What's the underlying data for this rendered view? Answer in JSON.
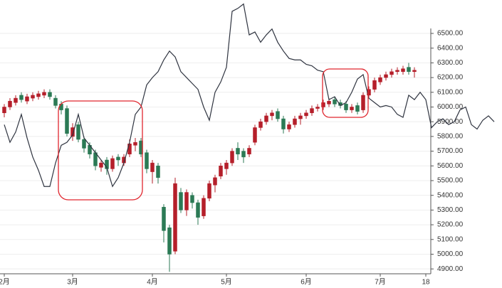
{
  "chart_data": {
    "type": "candlestick",
    "categories": [
      "2月",
      null,
      null,
      null,
      null,
      null,
      null,
      null,
      null,
      null,
      null,
      null,
      "3月",
      null,
      null,
      null,
      null,
      null,
      null,
      null,
      null,
      null,
      null,
      null,
      null,
      null,
      "4月",
      null,
      null,
      null,
      null,
      null,
      null,
      null,
      null,
      null,
      null,
      null,
      null,
      "5月",
      null,
      null,
      null,
      null,
      null,
      null,
      null,
      null,
      null,
      null,
      null,
      null,
      null,
      "6月",
      null,
      null,
      null,
      null,
      null,
      null,
      null,
      null,
      null,
      null,
      null,
      null,
      "7月",
      null,
      null,
      null,
      null,
      null,
      null,
      null,
      "18",
      null,
      null,
      null,
      null,
      null,
      null,
      null,
      null,
      null,
      null,
      null,
      null
    ],
    "open": [
      5960,
      6000,
      6030,
      6080,
      6040,
      6060,
      6070,
      6080,
      6100,
      6060,
      6020,
      5990,
      5800,
      5880,
      5780,
      5740,
      5690,
      5590,
      5640,
      5580,
      5660,
      5620,
      5680,
      5740,
      5770,
      5690,
      5560,
      5600,
      5320,
      5180,
      5020,
      5420,
      5300,
      5400,
      5350,
      5260,
      5380,
      5470,
      5530,
      5580,
      5620,
      5720,
      5700,
      5680,
      5760,
      5860,
      5900,
      5940,
      5970,
      5920,
      5850,
      5880,
      5920,
      5940,
      5960,
      5990,
      6000,
      6020,
      6050,
      6030,
      6020,
      5980,
      6010,
      5980,
      6080,
      6120,
      6170,
      6200,
      6220,
      6240,
      6240,
      6270,
      6240,
      null,
      null,
      null,
      null,
      null,
      null,
      null,
      null,
      null,
      null,
      null,
      null,
      null,
      null
    ],
    "high": [
      6020,
      6060,
      6080,
      6100,
      6090,
      6100,
      6110,
      6120,
      6120,
      6080,
      6040,
      6010,
      5890,
      5900,
      5800,
      5760,
      5710,
      5640,
      5660,
      5670,
      5680,
      5680,
      5780,
      5790,
      5790,
      5710,
      5640,
      5620,
      5340,
      5200,
      5520,
      5450,
      5440,
      5420,
      5370,
      5400,
      5500,
      5540,
      5620,
      5640,
      5720,
      5760,
      5720,
      5740,
      5880,
      5920,
      5960,
      5980,
      5990,
      5940,
      5900,
      5940,
      5960,
      5980,
      6010,
      6020,
      6050,
      6060,
      6070,
      6050,
      6040,
      6020,
      6030,
      6100,
      6140,
      6200,
      6220,
      6240,
      6260,
      6270,
      6280,
      6300,
      6270,
      null,
      null,
      null,
      null,
      null,
      null,
      null,
      null,
      null,
      null,
      null,
      null,
      null,
      null
    ],
    "low": [
      5930,
      5980,
      6010,
      6030,
      6020,
      6040,
      6050,
      6060,
      6050,
      5990,
      5950,
      5800,
      5770,
      5760,
      5690,
      5650,
      5570,
      5560,
      5540,
      5560,
      5600,
      5600,
      5660,
      5700,
      5660,
      5550,
      5480,
      5480,
      5080,
      4880,
      5000,
      5280,
      5260,
      5310,
      5200,
      5240,
      5360,
      5420,
      5510,
      5540,
      5600,
      5640,
      5620,
      5660,
      5740,
      5840,
      5880,
      5910,
      5900,
      5820,
      5830,
      5860,
      5880,
      5920,
      5940,
      5970,
      5980,
      6000,
      6000,
      5990,
      5960,
      5960,
      5950,
      5960,
      6060,
      6100,
      6150,
      6180,
      6200,
      6220,
      6220,
      6220,
      6200,
      null,
      null,
      null,
      null,
      null,
      null,
      null,
      null,
      null,
      null,
      null,
      null,
      null,
      null
    ],
    "close": [
      6000,
      6040,
      6060,
      6050,
      6070,
      6080,
      6090,
      6100,
      6070,
      6010,
      5980,
      5820,
      5860,
      5780,
      5720,
      5680,
      5600,
      5620,
      5580,
      5650,
      5640,
      5660,
      5750,
      5760,
      5680,
      5580,
      5620,
      5520,
      5160,
      5000,
      5480,
      5300,
      5420,
      5350,
      5250,
      5380,
      5480,
      5520,
      5600,
      5620,
      5700,
      5680,
      5660,
      5720,
      5860,
      5900,
      5940,
      5960,
      5920,
      5850,
      5880,
      5920,
      5940,
      5960,
      5990,
      6000,
      6030,
      6040,
      6020,
      6010,
      5980,
      6000,
      5970,
      6080,
      6120,
      6180,
      6200,
      6220,
      6240,
      6250,
      6260,
      6240,
      6250,
      null,
      null,
      null,
      null,
      null,
      null,
      null,
      null,
      null,
      null,
      null,
      null,
      null,
      null
    ],
    "up_color": "#b51f2a",
    "down_color": "#2b7a55",
    "line": {
      "type": "line",
      "color": "#2f3440",
      "values": [
        5880,
        5760,
        5830,
        5950,
        5790,
        5660,
        5570,
        5460,
        5460,
        5620,
        5740,
        5760,
        5810,
        5950,
        5790,
        5740,
        5690,
        5640,
        5590,
        5460,
        5520,
        5620,
        5760,
        5950,
        6000,
        6150,
        6200,
        6240,
        6320,
        6380,
        6340,
        6240,
        6200,
        6160,
        6120,
        6000,
        5910,
        6100,
        6170,
        6270,
        6650,
        6670,
        6700,
        6490,
        6510,
        6440,
        6490,
        6530,
        6440,
        6380,
        6330,
        6320,
        6320,
        6290,
        6280,
        6250,
        6240,
        6050,
        6070,
        6010,
        6030,
        6100,
        6190,
        6220,
        6060,
        6030,
        6000,
        6010,
        6000,
        5950,
        5930,
        6080,
        6050,
        6100,
        6050,
        5860,
        5900,
        5920,
        5880,
        5900,
        5980,
        6000,
        5880,
        5850,
        5910,
        5940,
        5900
      ]
    },
    "ylim": [
      4867,
      6727
    ],
    "yticks": [
      {
        "value": 4900,
        "label": "4900.00"
      },
      {
        "value": 5000,
        "label": "5000.00"
      },
      {
        "value": 5100,
        "label": "5100.00"
      },
      {
        "value": 5200,
        "label": "5200.00"
      },
      {
        "value": 5300,
        "label": "5300.00"
      },
      {
        "value": 5400,
        "label": "5400.00"
      },
      {
        "value": 5500,
        "label": "5500.00"
      },
      {
        "value": 5600,
        "label": "5600.00"
      },
      {
        "value": 5700,
        "label": "5700.00"
      },
      {
        "value": 5800,
        "label": "5800.00"
      },
      {
        "value": 5900,
        "label": "5900.00"
      },
      {
        "value": 6000,
        "label": "6000.00"
      },
      {
        "value": 6100,
        "label": "6100.00"
      },
      {
        "value": 6200,
        "label": "6200.00"
      },
      {
        "value": 6300,
        "label": "6300.00"
      },
      {
        "value": 6400,
        "label": "6400.00"
      },
      {
        "value": 6500,
        "label": "6500.00"
      }
    ],
    "grid": true
  }
}
